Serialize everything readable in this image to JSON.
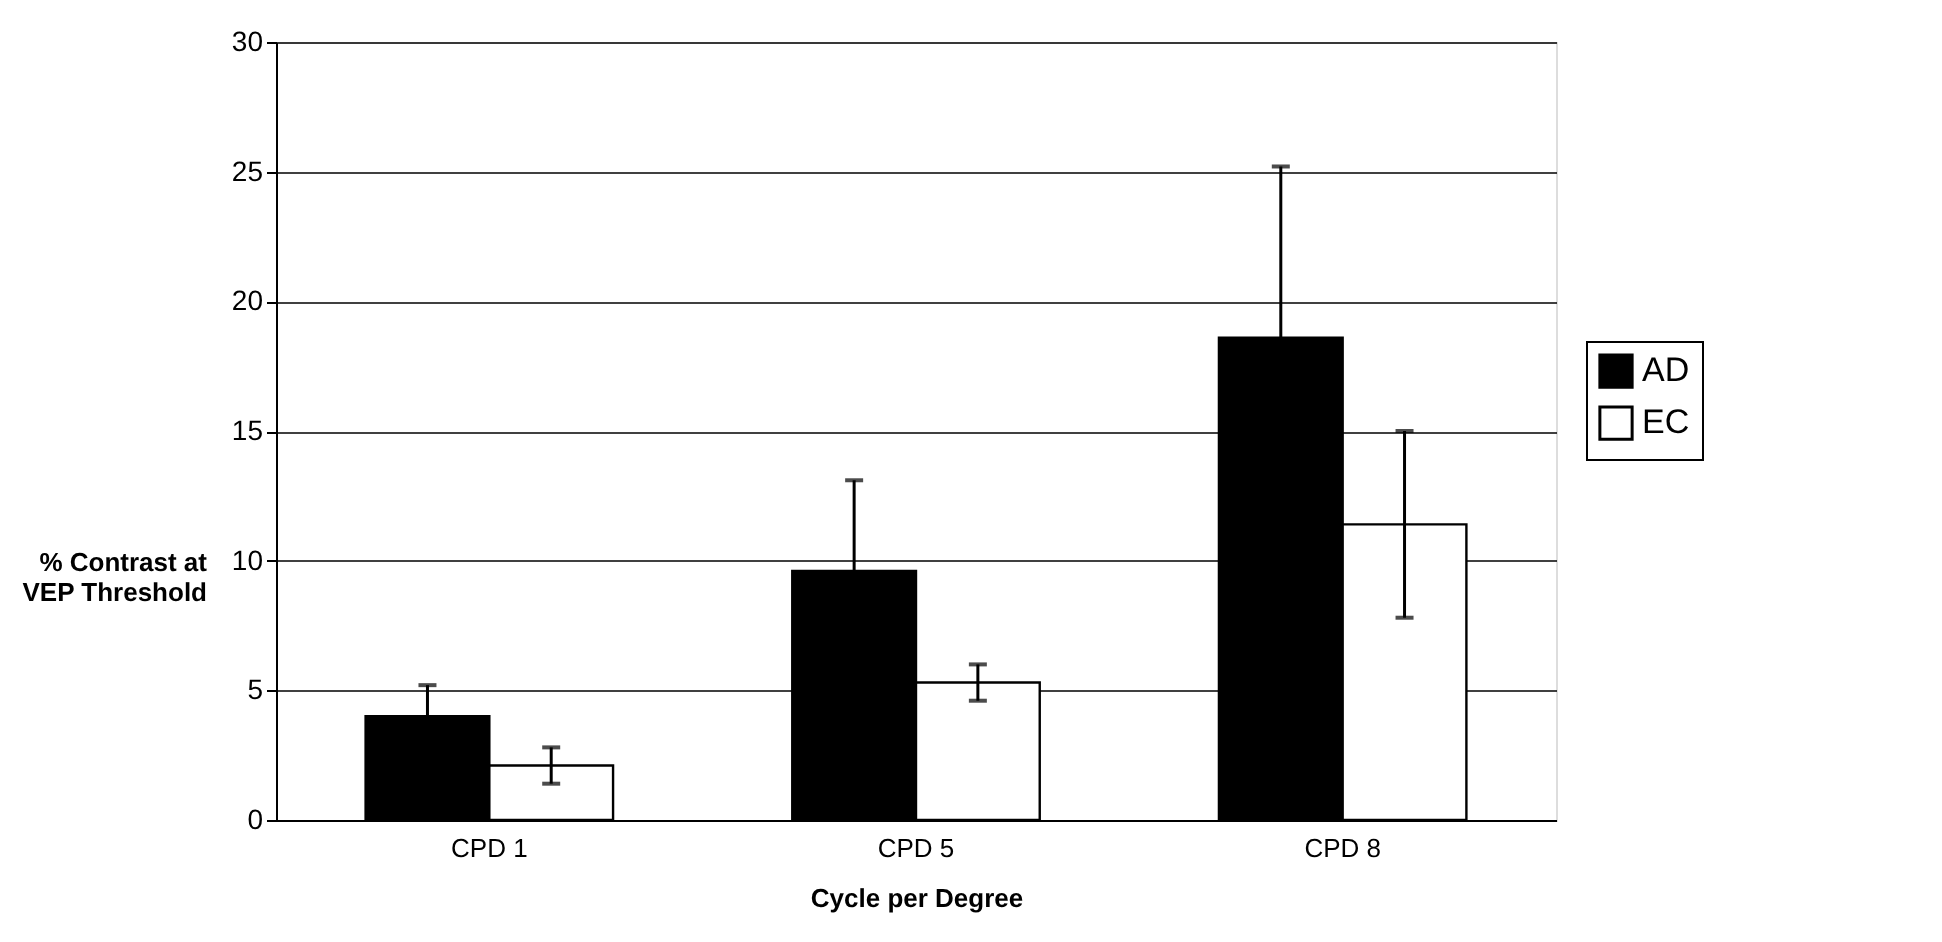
{
  "chart_data": {
    "type": "bar",
    "xlabel": "Cycle per Degree",
    "ylabel": "% Contrast at VEP Threshold",
    "categories": [
      "CPD 1",
      "CPD 5",
      "CPD 8"
    ],
    "series": [
      {
        "name": "AD",
        "color": "#000000",
        "values": [
          4.0,
          9.6,
          18.6
        ],
        "errors": [
          1.2,
          3.5,
          6.6
        ]
      },
      {
        "name": "EC",
        "color": "#ffffff",
        "values": [
          2.1,
          5.3,
          11.4
        ],
        "errors": [
          0.7,
          0.7,
          3.6
        ]
      }
    ],
    "ylim": [
      0,
      30
    ],
    "yticks": [
      0,
      5,
      10,
      15,
      20,
      25,
      30
    ],
    "grid": "y",
    "legend": "right"
  }
}
